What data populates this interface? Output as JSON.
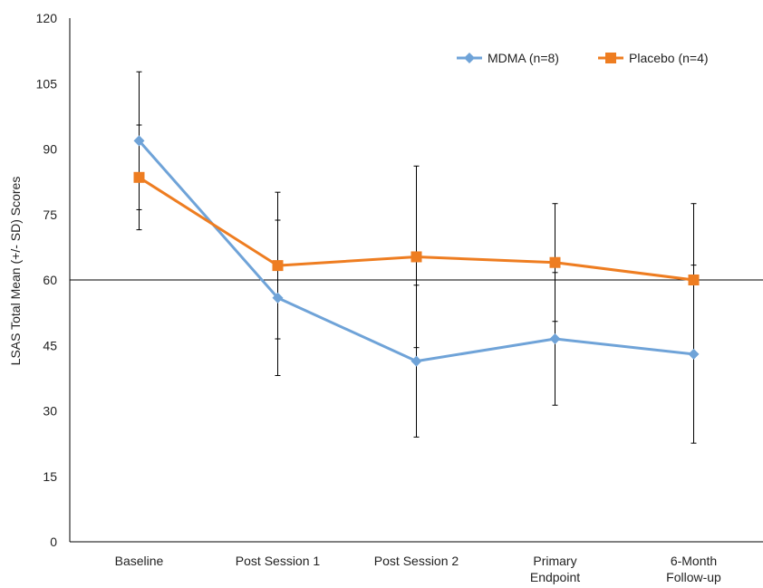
{
  "chart_data": {
    "type": "line",
    "title": "",
    "xlabel": "",
    "ylabel": "LSAS Total  Mean (+/- SD) Scores",
    "ylim": [
      0,
      120
    ],
    "yticks": [
      0,
      15,
      30,
      45,
      60,
      75,
      90,
      105,
      120
    ],
    "categories": [
      [
        "Baseline"
      ],
      [
        "Post Session 1"
      ],
      [
        "Post Session 2"
      ],
      [
        "Primary",
        "Endpoint"
      ],
      [
        "6-Month",
        "Follow-up"
      ]
    ],
    "reference_line": 60,
    "legend_position": "top-right",
    "grid": false,
    "series": [
      {
        "name": "MDMA (n=8)",
        "color": "#6fa3d8",
        "marker": "diamond",
        "values": [
          91.9,
          55.9,
          41.4,
          46.5,
          43.0
        ],
        "sd": [
          15.8,
          17.8,
          17.4,
          15.2,
          20.4
        ]
      },
      {
        "name": "Placebo (n=4)",
        "color": "#ee7d21",
        "marker": "square",
        "values": [
          83.5,
          63.3,
          65.3,
          64.0,
          60.0
        ],
        "sd": [
          12.0,
          16.8,
          20.8,
          13.5,
          17.5
        ]
      }
    ]
  }
}
